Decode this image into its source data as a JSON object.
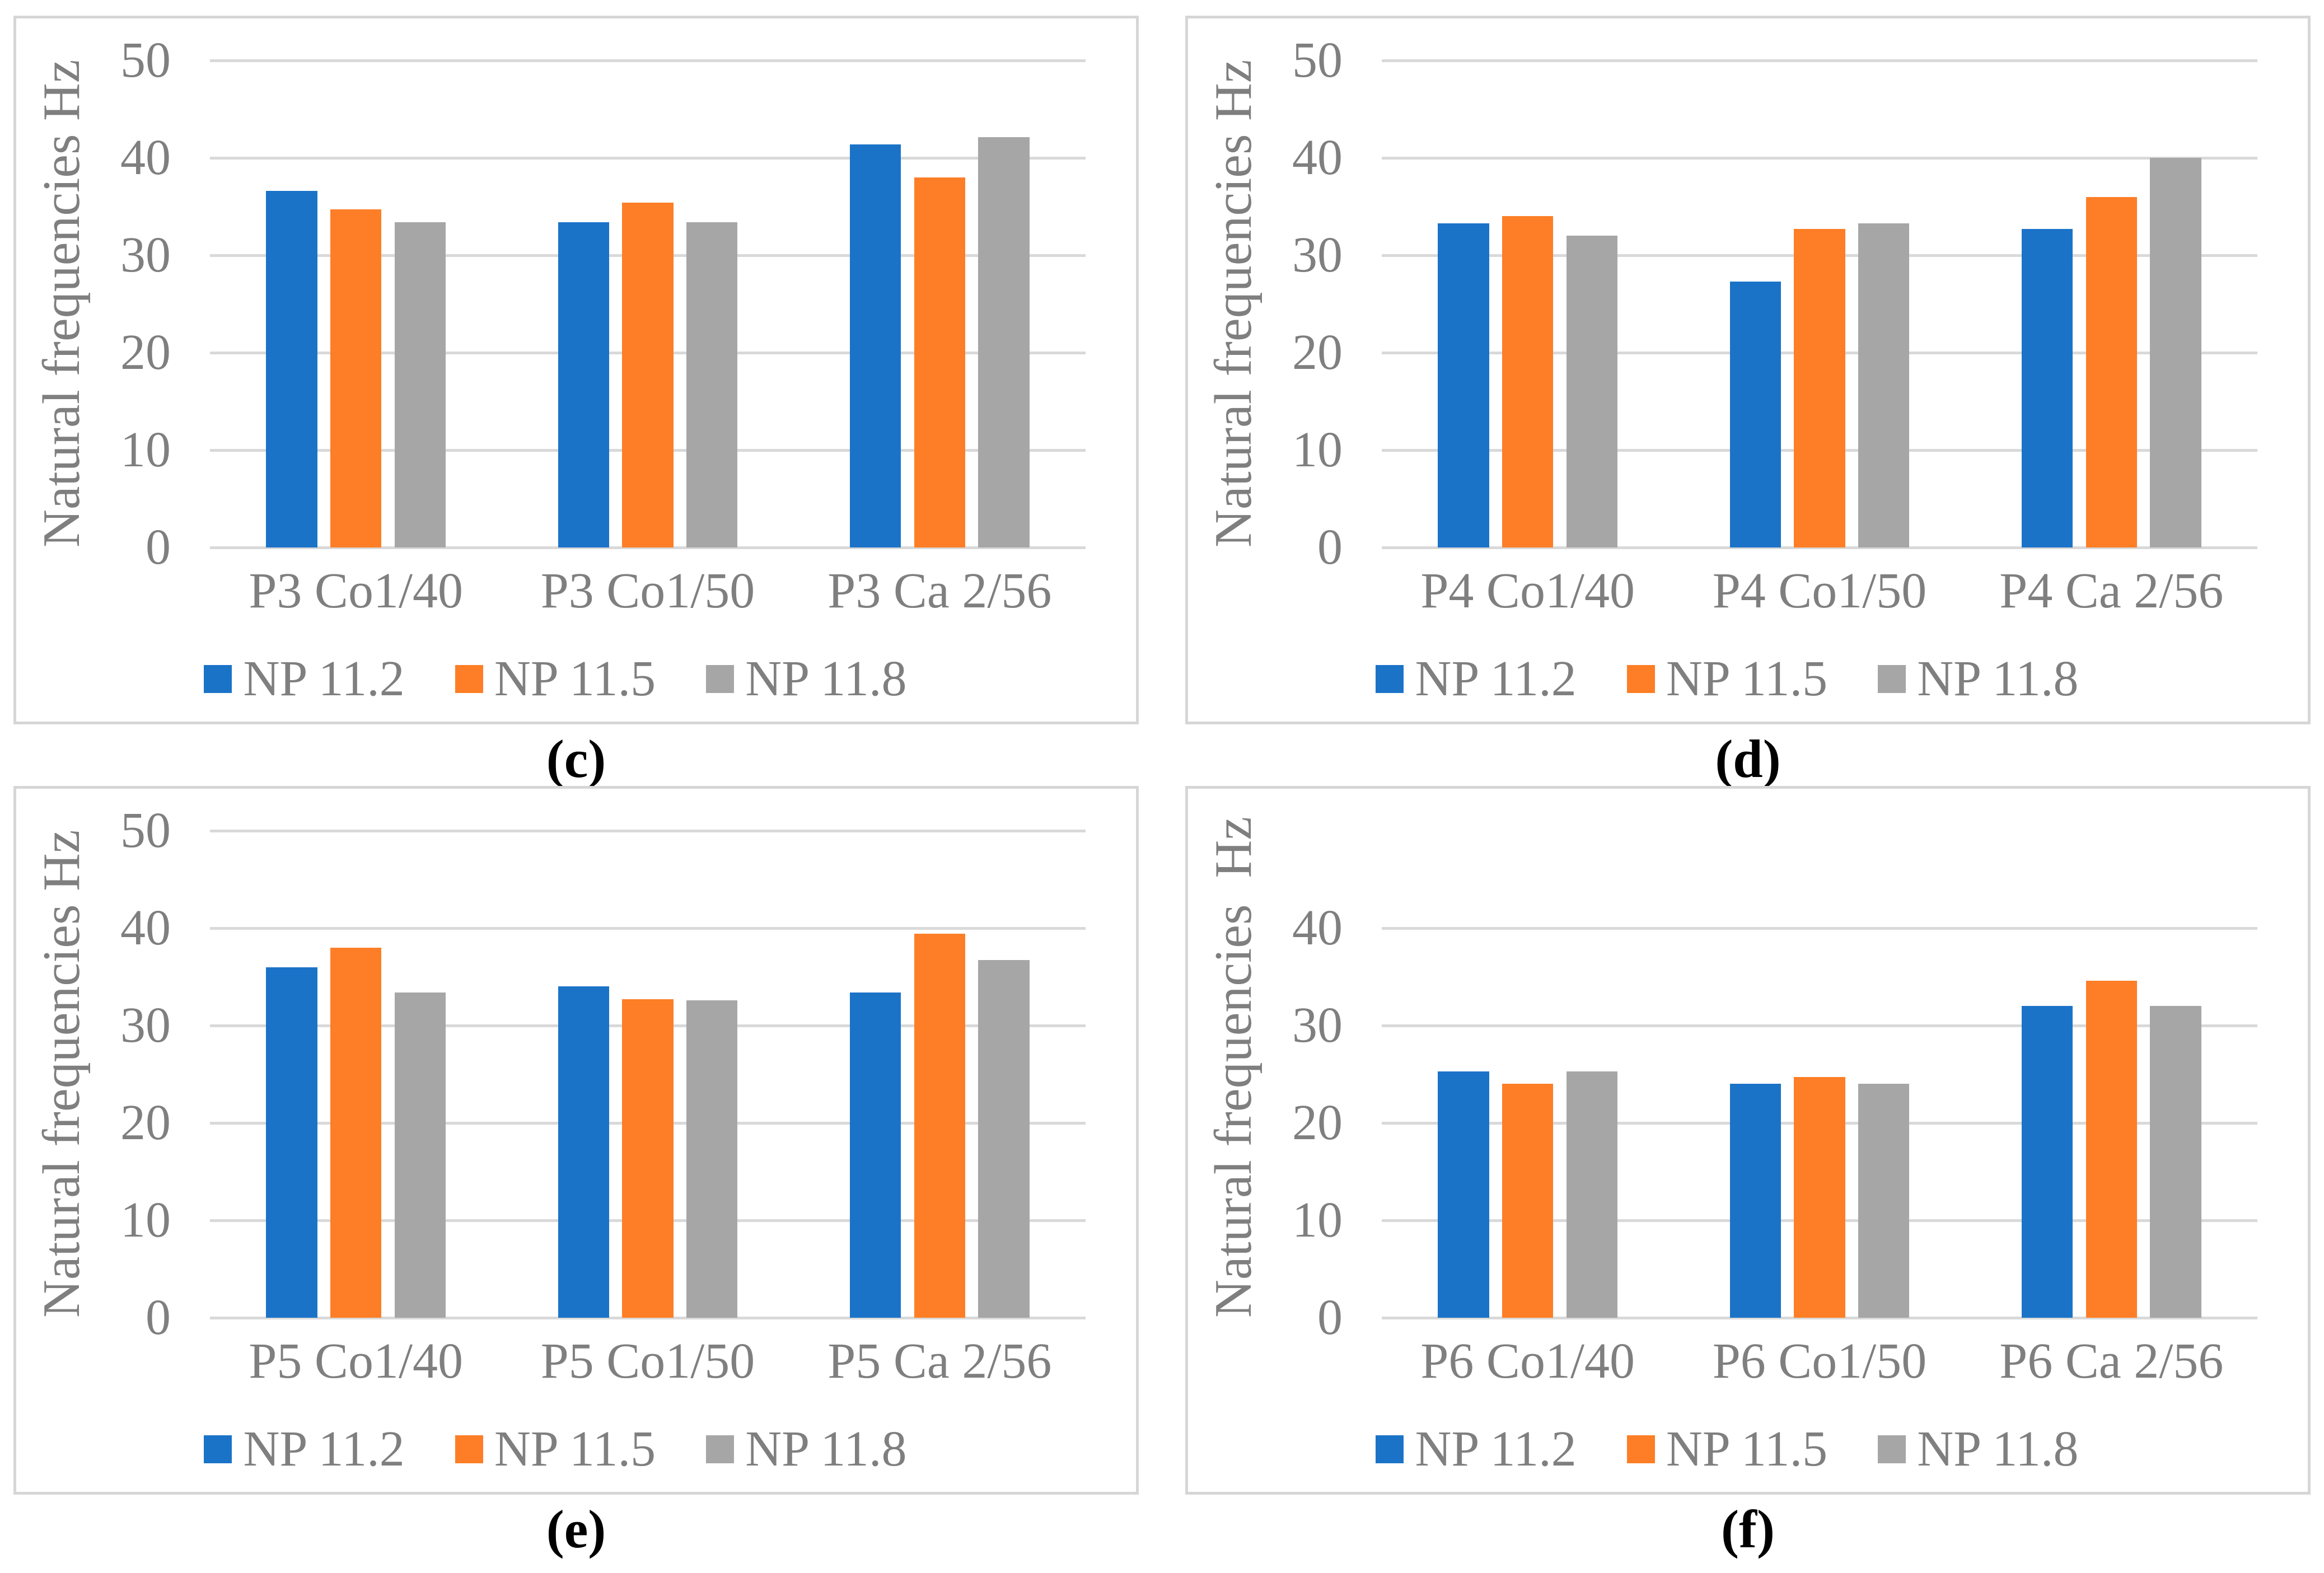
{
  "styles": {
    "bar_blue": "#1B73C8",
    "bar_orange": "#FD7E26",
    "bar_gray": "#A6A6A6",
    "gridline_color": "#D9D9D9",
    "axis_text_color": "#7F7F7F",
    "panel_border_color": "#D6D6D6",
    "caption_color": "#000000"
  },
  "chart_data": [
    {
      "panel": "c",
      "caption": "(c)",
      "type": "bar",
      "y_label": "Natural frequencies Hz",
      "xlabel": "",
      "ylim": [
        0,
        50
      ],
      "yticks": [
        0,
        10,
        20,
        30,
        40,
        50
      ],
      "grid": "horizontal",
      "legend_position": "bottom",
      "categories": [
        "P3 Co1/40",
        "P3 Co1/50",
        "P3 Ca 2/56"
      ],
      "series": [
        {
          "name": "NP 11.2",
          "color": "#1B73C8",
          "values": [
            36.6,
            33.4,
            41.4
          ]
        },
        {
          "name": "NP 11.5",
          "color": "#FD7E26",
          "values": [
            34.7,
            35.4,
            38.0
          ]
        },
        {
          "name": "NP 11.8",
          "color": "#A6A6A6",
          "values": [
            33.4,
            33.4,
            42.1
          ]
        }
      ]
    },
    {
      "panel": "d",
      "caption": "(d)",
      "type": "bar",
      "y_label": "Natural frequencies Hz",
      "xlabel": "",
      "ylim": [
        0,
        50
      ],
      "yticks": [
        0,
        10,
        20,
        30,
        40,
        50
      ],
      "grid": "horizontal",
      "legend_position": "bottom",
      "categories": [
        "P4 Co1/40",
        "P4 Co1/50",
        "P4 Ca 2/56"
      ],
      "series": [
        {
          "name": "NP 11.2",
          "color": "#1B73C8",
          "values": [
            33.3,
            27.3,
            32.7
          ]
        },
        {
          "name": "NP 11.5",
          "color": "#FD7E26",
          "values": [
            34.0,
            32.7,
            36.0
          ]
        },
        {
          "name": "NP 11.8",
          "color": "#A6A6A6",
          "values": [
            32.0,
            33.3,
            40.0
          ]
        }
      ]
    },
    {
      "panel": "e",
      "caption": "(e)",
      "type": "bar",
      "y_label": "Natural frequencies Hz",
      "xlabel": "",
      "ylim": [
        0,
        50
      ],
      "yticks": [
        0,
        10,
        20,
        30,
        40,
        50
      ],
      "grid": "horizontal",
      "legend_position": "bottom",
      "categories": [
        "P5 Co1/40",
        "P5 Co1/50",
        "P5 Ca 2/56"
      ],
      "series": [
        {
          "name": "NP 11.2",
          "color": "#1B73C8",
          "values": [
            36.0,
            34.0,
            33.4
          ]
        },
        {
          "name": "NP 11.5",
          "color": "#FD7E26",
          "values": [
            38.0,
            32.7,
            39.4
          ]
        },
        {
          "name": "NP 11.8",
          "color": "#A6A6A6",
          "values": [
            33.4,
            32.6,
            36.7
          ]
        }
      ]
    },
    {
      "panel": "f",
      "caption": "(f)",
      "type": "bar",
      "y_label": "Natural frequencies  Hz",
      "xlabel": "",
      "ylim": [
        0,
        40
      ],
      "yticks": [
        0,
        10,
        20,
        30,
        40
      ],
      "grid": "horizontal",
      "legend_position": "bottom",
      "categories": [
        "P6 Co1/40",
        "P6 Co1/50",
        "P6 Ca 2/56"
      ],
      "series": [
        {
          "name": "NP 11.2",
          "color": "#1B73C8",
          "values": [
            25.3,
            24.0,
            32.0
          ]
        },
        {
          "name": "NP 11.5",
          "color": "#FD7E26",
          "values": [
            24.0,
            24.7,
            34.6
          ]
        },
        {
          "name": "NP 11.8",
          "color": "#A6A6A6",
          "values": [
            25.3,
            24.0,
            32.0
          ]
        }
      ]
    }
  ]
}
